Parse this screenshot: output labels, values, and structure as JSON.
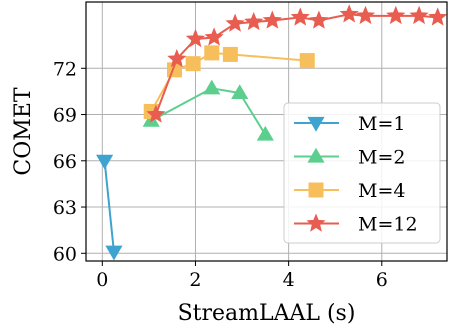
{
  "chart_data": {
    "type": "line",
    "xlabel": "StreamLAAL (s)",
    "ylabel": "COMET",
    "xlim": [
      -0.35,
      7.4
    ],
    "ylim": [
      59.5,
      76.3
    ],
    "xticks": [
      0,
      2,
      4,
      6
    ],
    "yticks": [
      60,
      63,
      66,
      69,
      72
    ],
    "grid": true,
    "legend_position": "lower-right",
    "series": [
      {
        "name": "M=1",
        "color": "#3ea3d0",
        "marker": "triangle-down",
        "x": [
          0.05,
          0.25
        ],
        "y": [
          66.0,
          60.1
        ]
      },
      {
        "name": "M=2",
        "color": "#5ccf8e",
        "marker": "triangle-up",
        "x": [
          1.05,
          2.35,
          2.95,
          3.5
        ],
        "y": [
          68.6,
          70.7,
          70.4,
          67.7
        ]
      },
      {
        "name": "M=4",
        "color": "#f7bf5b",
        "marker": "square",
        "x": [
          1.05,
          1.55,
          1.95,
          2.35,
          2.75,
          4.4
        ],
        "y": [
          69.2,
          71.9,
          72.3,
          73.0,
          72.9,
          72.5
        ]
      },
      {
        "name": "M=12",
        "color": "#e85d50",
        "marker": "star",
        "x": [
          1.15,
          1.6,
          2.0,
          2.4,
          2.85,
          3.25,
          3.65,
          4.25,
          4.65,
          5.3,
          5.65,
          6.3,
          6.8,
          7.2
        ],
        "y": [
          69.0,
          72.6,
          73.9,
          74.0,
          74.9,
          75.0,
          75.1,
          75.3,
          75.1,
          75.5,
          75.4,
          75.4,
          75.4,
          75.3
        ]
      }
    ]
  }
}
